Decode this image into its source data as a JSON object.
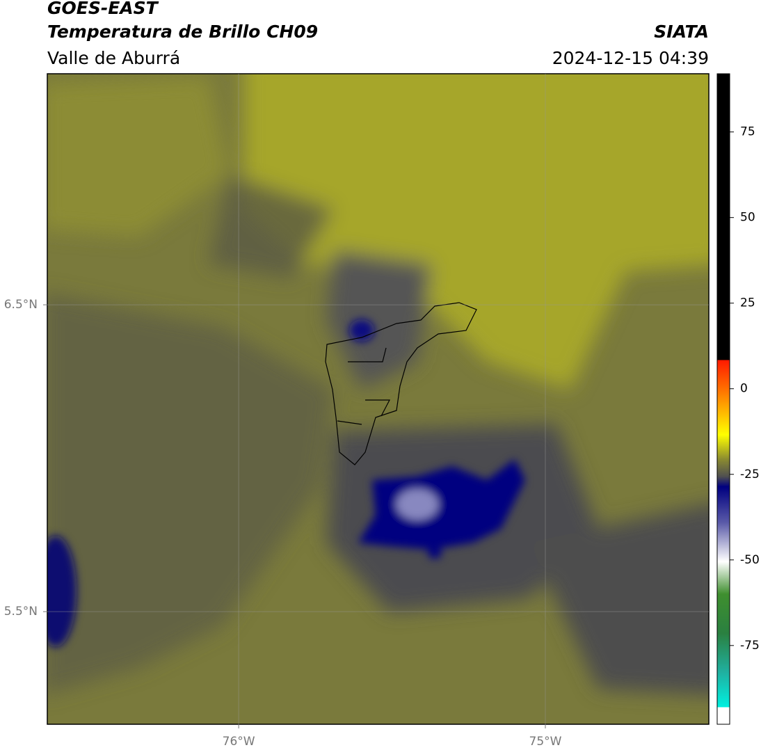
{
  "header": {
    "title": "GOES-EAST",
    "subtitle": "Temperatura de Brillo CH09",
    "region": "Valle de Aburrá",
    "brand": "SIATA",
    "timestamp": "2024-12-15 04:39"
  },
  "map": {
    "xlim": [
      -76.624,
      -74.467
    ],
    "ylim": [
      5.133,
      7.253
    ],
    "xticks": [
      {
        "value": -76,
        "label": "76°W"
      },
      {
        "value": -75,
        "label": "75°W"
      }
    ],
    "yticks": [
      {
        "value": 6.5,
        "label": "6.5°N"
      },
      {
        "value": 5.5,
        "label": "5.5°N"
      }
    ],
    "grid": true
  },
  "colorbar": {
    "lim": [
      -98,
      92
    ],
    "ticks": [
      75,
      50,
      25,
      0,
      -25,
      -50,
      -75
    ]
  }
}
